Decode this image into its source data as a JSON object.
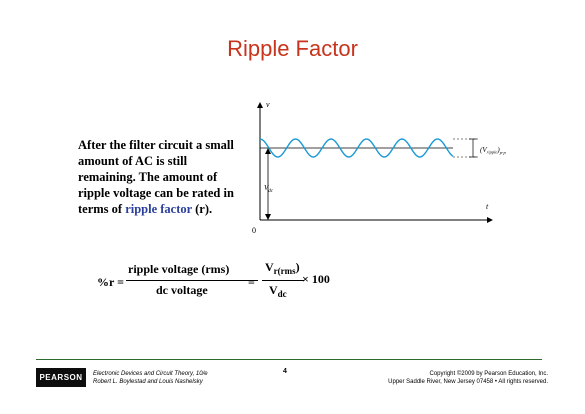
{
  "slide": {
    "title": "Ripple Factor",
    "body_lines": [
      "After the filter circuit a small",
      "amount of AC is still",
      "remaining. The amount of",
      "ripple voltage can be rated in"
    ],
    "body_last_prefix": "terms of ",
    "body_highlight": "ripple factor",
    "body_last_suffix": " (r).",
    "highlight_color": "#2a3f9b",
    "title_color": "#c8341c"
  },
  "graph": {
    "v_axis_label": "v",
    "t_axis_label": "t",
    "origin_label": "0",
    "vdc_label": "V",
    "vdc_sub": "dc",
    "vripple_label": "(V",
    "vripple_sub": "ripple",
    "vripple_close": ")",
    "vripple_pp": "p-p",
    "wave_color": "#1a9ad6"
  },
  "formula": {
    "lhs": "%r =",
    "num1": "ripple voltage (rms)",
    "den1": "dc voltage",
    "eq2": "=",
    "num2_main": "V",
    "num2_sub": "r(rms",
    "num2_close": ")",
    "den2_main": "V",
    "den2_sub": "dc",
    "times": "× 100"
  },
  "footer": {
    "logo": "PEARSON",
    "book_line1": "Electronic Devices and Circuit Theory, 10/e",
    "book_line2": "Robert L. Boylestad and Louis Nashelsky",
    "page": "4",
    "copy_line1": "Copyright ©2009 by Pearson Education, Inc.",
    "copy_line2": "Upper Saddle River, New Jersey 07458 • All rights reserved."
  }
}
